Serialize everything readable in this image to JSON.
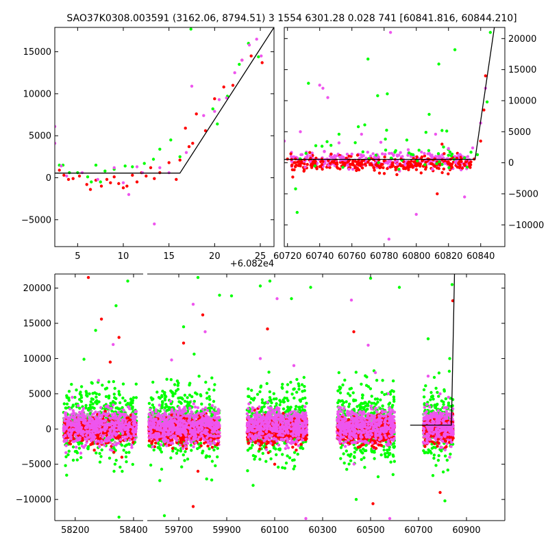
{
  "title": "SAO37K0308.003591 (3162.06, 8794.51)   3 1554 6301.28 0.028 741 [60841.816, 60844.210]",
  "colors": {
    "red": "#ff0000",
    "green": "#00ff00",
    "magenta": "#ee55ee",
    "gray": "#aaaaaa",
    "model": "#000000"
  },
  "chart_data": [
    {
      "id": "zoom",
      "type": "scatter",
      "xlim": [
        2.5,
        26.5
      ],
      "ylim": [
        -8200,
        17900
      ],
      "xticks": [
        "5",
        "10",
        "15",
        "20",
        "25"
      ],
      "xtick_values": [
        5,
        10,
        15,
        20,
        25
      ],
      "yticks": [
        "−5000",
        "0",
        "5000",
        "10000",
        "15000"
      ],
      "ytick_values": [
        -5000,
        0,
        5000,
        10000,
        15000
      ],
      "offset_label": "+6.082e4",
      "model_line": [
        [
          2.5,
          550
        ],
        [
          16.2,
          550
        ],
        [
          26.5,
          17900
        ]
      ],
      "series": [
        {
          "color": "red",
          "points": [
            [
              3,
              900
            ],
            [
              3.5,
              300
            ],
            [
              4,
              -200
            ],
            [
              4.5,
              -100
            ],
            [
              5.2,
              200
            ],
            [
              6,
              -800
            ],
            [
              6.4,
              -1400
            ],
            [
              7,
              -300
            ],
            [
              7.6,
              -1000
            ],
            [
              8.2,
              -200
            ],
            [
              8.6,
              -600
            ],
            [
              9,
              100
            ],
            [
              9.5,
              -700
            ],
            [
              10,
              -1200
            ],
            [
              10.4,
              -1000
            ],
            [
              11,
              300
            ],
            [
              11.5,
              -500
            ],
            [
              12,
              600
            ],
            [
              12.5,
              200
            ],
            [
              13,
              1200
            ],
            [
              13.4,
              -100
            ],
            [
              14,
              600
            ],
            [
              15,
              1800
            ],
            [
              15.8,
              -200
            ],
            [
              16.2,
              2100
            ],
            [
              16.8,
              5900
            ],
            [
              17.2,
              3700
            ],
            [
              17.6,
              4100
            ],
            [
              18,
              7600
            ],
            [
              19,
              5600
            ],
            [
              20,
              9400
            ],
            [
              21,
              10800
            ],
            [
              22,
              11000
            ],
            [
              23,
              14000
            ],
            [
              24,
              14500
            ],
            [
              25.2,
              13700
            ]
          ]
        },
        {
          "color": "green",
          "points": [
            [
              3,
              1500
            ],
            [
              3.4,
              1500
            ],
            [
              4.1,
              600
            ],
            [
              5,
              600
            ],
            [
              6.1,
              100
            ],
            [
              6.5,
              -500
            ],
            [
              7,
              1500
            ],
            [
              7.5,
              -500
            ],
            [
              8,
              800
            ],
            [
              9,
              1000
            ],
            [
              10.2,
              1400
            ],
            [
              11,
              1300
            ],
            [
              12.3,
              1700
            ],
            [
              13.3,
              2200
            ],
            [
              14,
              3400
            ],
            [
              15.2,
              4500
            ],
            [
              16.2,
              2500
            ],
            [
              17.4,
              17700
            ],
            [
              19.8,
              8200
            ],
            [
              20.3,
              6400
            ],
            [
              21.4,
              9700
            ],
            [
              22.7,
              13500
            ],
            [
              23.7,
              16000
            ],
            [
              24.8,
              14400
            ]
          ]
        },
        {
          "color": "magenta",
          "points": [
            [
              2.5,
              6100
            ],
            [
              2.5,
              4100
            ],
            [
              3.2,
              1400
            ],
            [
              3.8,
              200
            ],
            [
              5.5,
              600
            ],
            [
              7.2,
              -200
            ],
            [
              9,
              1200
            ],
            [
              10,
              -600
            ],
            [
              10.6,
              -2000
            ],
            [
              11.5,
              1300
            ],
            [
              12.1,
              600
            ],
            [
              13.4,
              -5500
            ],
            [
              14,
              1200
            ],
            [
              15,
              600
            ],
            [
              16.9,
              3000
            ],
            [
              17.5,
              10900
            ],
            [
              18.8,
              7400
            ],
            [
              20,
              7900
            ],
            [
              20.5,
              9300
            ],
            [
              21.3,
              9500
            ],
            [
              22.2,
              12500
            ],
            [
              23,
              14000
            ],
            [
              23.8,
              15800
            ],
            [
              24.6,
              16500
            ],
            [
              25.1,
              14500
            ]
          ]
        }
      ]
    },
    {
      "id": "recent",
      "type": "scatter",
      "xlim": [
        60718,
        60855
      ],
      "ylim": [
        -13500,
        21800
      ],
      "xticks": [
        "60720",
        "60740",
        "60760",
        "60780",
        "60800",
        "60820",
        "60840"
      ],
      "xtick_values": [
        60720,
        60740,
        60760,
        60780,
        60800,
        60820,
        60840
      ],
      "yticks": [
        "−10000",
        "−5000",
        "0",
        "5000",
        "10000",
        "15000",
        "20000"
      ],
      "ytick_values": [
        -10000,
        -5000,
        0,
        5000,
        10000,
        15000,
        20000
      ],
      "model_line": [
        [
          60718,
          550
        ],
        [
          60836.5,
          550
        ],
        [
          60848.5,
          21800
        ]
      ],
      "series": [
        {
          "color": "red",
          "points": [
            [
              60720,
              600
            ],
            [
              60728,
              -500
            ],
            [
              60735,
              -200
            ],
            [
              60742,
              200
            ],
            [
              60750,
              -100
            ],
            [
              60758,
              300
            ],
            [
              60762,
              -800
            ],
            [
              60770,
              100
            ],
            [
              60774,
              -1200
            ],
            [
              60780,
              300
            ],
            [
              60785,
              -600
            ],
            [
              60792,
              200
            ],
            [
              60797,
              -300
            ],
            [
              60803,
              700
            ],
            [
              60810,
              -200
            ],
            [
              60813,
              -5000
            ],
            [
              60816,
              3000
            ],
            [
              60822,
              -300
            ],
            [
              60828,
              200
            ],
            [
              60833,
              -500
            ],
            [
              60836,
              600
            ],
            [
              60840,
              3500
            ],
            [
              60842,
              8500
            ],
            [
              60843,
              14000
            ]
          ]
        },
        {
          "color": "green",
          "points": [
            [
              60725,
              -4200
            ],
            [
              60726,
              -8000
            ],
            [
              60733,
              12800
            ],
            [
              60747,
              2800
            ],
            [
              60752,
              4600
            ],
            [
              60764,
              5800
            ],
            [
              60768,
              6100
            ],
            [
              60770,
              16700
            ],
            [
              60776,
              10800
            ],
            [
              60782,
              11100
            ],
            [
              60791,
              400
            ],
            [
              60798,
              1300
            ],
            [
              60806,
              4900
            ],
            [
              60808,
              7800
            ],
            [
              60814,
              15900
            ],
            [
              60816,
              5200
            ],
            [
              60820,
              1200
            ],
            [
              60824,
              18200
            ],
            [
              60830,
              800
            ],
            [
              60834,
              1700
            ],
            [
              60838,
              1300
            ],
            [
              60844,
              9800
            ],
            [
              60846,
              21000
            ]
          ]
        },
        {
          "color": "magenta",
          "points": [
            [
              60718,
              3500
            ],
            [
              60728,
              5000
            ],
            [
              60740,
              12500
            ],
            [
              60742,
              12000
            ],
            [
              60745,
              10500
            ],
            [
              60752,
              3200
            ],
            [
              60760,
              1400
            ],
            [
              60766,
              4600
            ],
            [
              60774,
              900
            ],
            [
              60778,
              3300
            ],
            [
              60783,
              -12300
            ],
            [
              60784,
              21000
            ],
            [
              60795,
              2100
            ],
            [
              60800,
              -8300
            ],
            [
              60805,
              1500
            ],
            [
              60812,
              4600
            ],
            [
              60820,
              2300
            ],
            [
              60830,
              -5500
            ],
            [
              60832,
              1000
            ],
            [
              60835,
              2400
            ],
            [
              60840,
              6400
            ],
            [
              60843,
              12000
            ]
          ]
        }
      ]
    },
    {
      "id": "full",
      "type": "scatter",
      "xlim": [
        58130,
        61060
      ],
      "ylim": [
        -13000,
        22000
      ],
      "x_gap": [
        58440,
        59560
      ],
      "xticks": [
        "58200",
        "58400",
        "59700",
        "59900",
        "60100",
        "60300",
        "60500",
        "60700",
        "60900"
      ],
      "xtick_values": [
        58200,
        58400,
        59700,
        59900,
        60100,
        60300,
        60500,
        60700,
        60900
      ],
      "yticks": [
        "−10000",
        "−5000",
        "0",
        "5000",
        "10000",
        "15000",
        "20000"
      ],
      "ytick_values": [
        -10000,
        -5000,
        0,
        5000,
        10000,
        15000,
        20000
      ],
      "model_line": [
        [
          60665,
          550
        ],
        [
          60837,
          550
        ],
        [
          60850,
          22000
        ]
      ],
      "clusters": [
        {
          "x_range": [
            58160,
            58410
          ]
        },
        {
          "x_range": [
            59575,
            59870
          ]
        },
        {
          "x_range": [
            59985,
            60235
          ]
        },
        {
          "x_range": [
            60360,
            60600
          ]
        },
        {
          "x_range": [
            60720,
            60845
          ]
        }
      ],
      "highlights": [
        {
          "color": "red",
          "points": [
            [
              58245,
              21500
            ],
            [
              58290,
              15600
            ],
            [
              58320,
              9500
            ],
            [
              58350,
              13000
            ],
            [
              58360,
              -4000
            ],
            [
              59720,
              12200
            ],
            [
              59780,
              -6000
            ],
            [
              59800,
              16200
            ],
            [
              59760,
              -11000
            ],
            [
              60070,
              14200
            ],
            [
              60100,
              -5000
            ],
            [
              60190,
              -3000
            ],
            [
              60510,
              -10600
            ],
            [
              60430,
              13800
            ],
            [
              60830,
              -1200
            ],
            [
              60790,
              -9000
            ],
            [
              60843,
              18200
            ]
          ]
        },
        {
          "color": "green",
          "points": [
            [
              58230,
              9900
            ],
            [
              58270,
              14000
            ],
            [
              58340,
              17500
            ],
            [
              58380,
              21000
            ],
            [
              58350,
              -12500
            ],
            [
              59720,
              14500
            ],
            [
              59780,
              21500
            ],
            [
              59870,
              19000
            ],
            [
              59640,
              -12300
            ],
            [
              59920,
              18900
            ],
            [
              60040,
              20300
            ],
            [
              60080,
              21000
            ],
            [
              60170,
              18500
            ],
            [
              60010,
              -8000
            ],
            [
              60250,
              20100
            ],
            [
              60500,
              21400
            ],
            [
              60440,
              -10000
            ],
            [
              60560,
              -3600
            ],
            [
              60620,
              20100
            ],
            [
              60740,
              12800
            ],
            [
              60760,
              -6600
            ],
            [
              60810,
              -10200
            ],
            [
              60830,
              10000
            ],
            [
              60840,
              20500
            ]
          ]
        },
        {
          "color": "magenta",
          "points": [
            [
              58190,
              4500
            ],
            [
              58280,
              6900
            ],
            [
              58330,
              12000
            ],
            [
              58390,
              -1000
            ],
            [
              59670,
              9800
            ],
            [
              59760,
              17700
            ],
            [
              59810,
              13800
            ],
            [
              59850,
              -2000
            ],
            [
              60040,
              10000
            ],
            [
              60110,
              18500
            ],
            [
              60180,
              9000
            ],
            [
              60230,
              -12700
            ],
            [
              60420,
              18300
            ],
            [
              60490,
              11900
            ],
            [
              60520,
              8000
            ],
            [
              60580,
              -12700
            ],
            [
              60740,
              7500
            ],
            [
              60790,
              5000
            ],
            [
              60830,
              -4000
            ]
          ]
        }
      ]
    }
  ]
}
